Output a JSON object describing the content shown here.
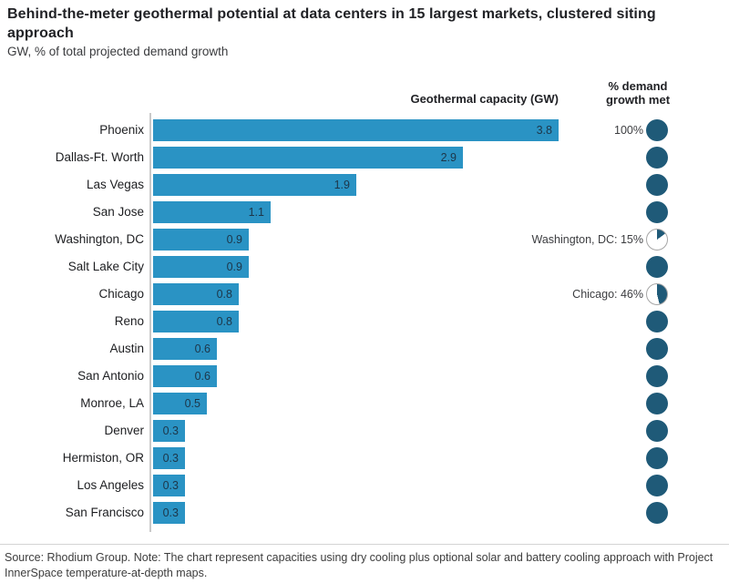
{
  "title": "Behind-the-meter geothermal potential at data centers in 15 largest markets, clustered siting approach",
  "subtitle": "GW, % of total projected demand growth",
  "column_headers": {
    "bar_axis": "Geothermal capacity (GW)",
    "pct_column": "% demand growth met"
  },
  "chart_data": {
    "type": "bar",
    "orientation": "horizontal",
    "title": "Behind-the-meter geothermal potential at data centers in 15 largest markets, clustered siting approach",
    "units_label": "GW, % of total projected demand growth",
    "value_axis_label": "Geothermal capacity (GW)",
    "secondary_metric_label": "% demand growth met",
    "xlim": [
      0,
      3.8
    ],
    "grid": false,
    "rows": [
      {
        "label": "Phoenix",
        "value": 3.8,
        "value_label": "3.8",
        "demand_growth_met_pct": 100,
        "pct_label": "100%"
      },
      {
        "label": "Dallas-Ft. Worth",
        "value": 2.9,
        "value_label": "2.9",
        "demand_growth_met_pct": 100,
        "pct_label": ""
      },
      {
        "label": "Las Vegas",
        "value": 1.9,
        "value_label": "1.9",
        "demand_growth_met_pct": 100,
        "pct_label": ""
      },
      {
        "label": "San Jose",
        "value": 1.1,
        "value_label": "1.1",
        "demand_growth_met_pct": 100,
        "pct_label": ""
      },
      {
        "label": "Washington, DC",
        "value": 0.9,
        "value_label": "0.9",
        "demand_growth_met_pct": 15,
        "pct_label": "Washington, DC: 15%"
      },
      {
        "label": "Salt Lake City",
        "value": 0.9,
        "value_label": "0.9",
        "demand_growth_met_pct": 100,
        "pct_label": ""
      },
      {
        "label": "Chicago",
        "value": 0.8,
        "value_label": "0.8",
        "demand_growth_met_pct": 46,
        "pct_label": "Chicago: 46%"
      },
      {
        "label": "Reno",
        "value": 0.8,
        "value_label": "0.8",
        "demand_growth_met_pct": 100,
        "pct_label": ""
      },
      {
        "label": "Austin",
        "value": 0.6,
        "value_label": "0.6",
        "demand_growth_met_pct": 100,
        "pct_label": ""
      },
      {
        "label": "San Antonio",
        "value": 0.6,
        "value_label": "0.6",
        "demand_growth_met_pct": 100,
        "pct_label": ""
      },
      {
        "label": "Monroe, LA",
        "value": 0.5,
        "value_label": "0.5",
        "demand_growth_met_pct": 100,
        "pct_label": ""
      },
      {
        "label": "Denver",
        "value": 0.3,
        "value_label": "0.3",
        "demand_growth_met_pct": 100,
        "pct_label": ""
      },
      {
        "label": "Hermiston, OR",
        "value": 0.3,
        "value_label": "0.3",
        "demand_growth_met_pct": 100,
        "pct_label": ""
      },
      {
        "label": "Los Angeles",
        "value": 0.3,
        "value_label": "0.3",
        "demand_growth_met_pct": 100,
        "pct_label": ""
      },
      {
        "label": "San Francisco",
        "value": 0.3,
        "value_label": "0.3",
        "demand_growth_met_pct": 100,
        "pct_label": ""
      }
    ]
  },
  "colors": {
    "bar": "#2a93c4",
    "dot": "#1f5a78",
    "pie_empty": "#ffffff",
    "pie_border": "#a6a6a6",
    "axis_line": "#c9c9c9"
  },
  "source_note": "Source: Rhodium Group. Note: The chart represent capacities using dry cooling plus optional solar and battery cooling approach with Project InnerSpace temperature-at-depth maps."
}
